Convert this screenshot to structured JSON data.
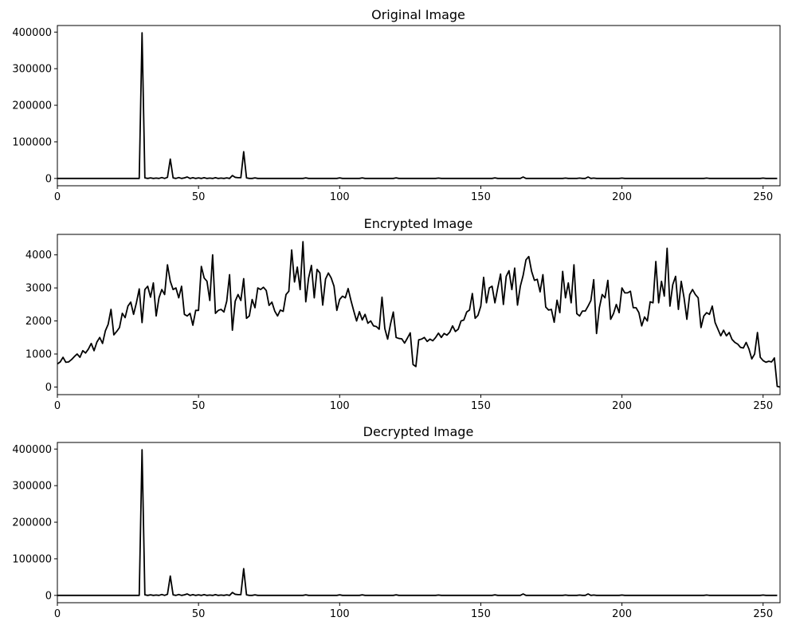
{
  "chart_data": [
    {
      "type": "line",
      "title": "Original Image",
      "xlabel": "",
      "ylabel": "",
      "xlim": [
        0,
        256
      ],
      "ylim": [
        -20000,
        418000
      ],
      "xticks": [
        0,
        50,
        100,
        150,
        200,
        250
      ],
      "yticks": [
        0,
        100000,
        200000,
        300000,
        400000
      ],
      "grid": false,
      "line_color": "#000000",
      "spikes": [
        [
          29,
          0
        ],
        [
          30,
          398000
        ],
        [
          31,
          1500
        ],
        [
          33,
          1500
        ],
        [
          35,
          1000
        ],
        [
          37,
          2500
        ],
        [
          39,
          3000
        ],
        [
          40,
          53000
        ],
        [
          41,
          1500
        ],
        [
          43,
          2500
        ],
        [
          45,
          1500
        ],
        [
          46,
          4000
        ],
        [
          48,
          2000
        ],
        [
          50,
          1500
        ],
        [
          52,
          2000
        ],
        [
          54,
          1000
        ],
        [
          56,
          2000
        ],
        [
          58,
          1000
        ],
        [
          60,
          1500
        ],
        [
          62,
          8000
        ],
        [
          63,
          3000
        ],
        [
          64,
          2000
        ],
        [
          65,
          2000
        ],
        [
          66,
          73000
        ],
        [
          67,
          1500
        ],
        [
          70,
          1500
        ],
        [
          88,
          1500
        ],
        [
          100,
          1500
        ],
        [
          108,
          1500
        ],
        [
          120,
          1500
        ],
        [
          135,
          1000
        ],
        [
          155,
          1500
        ],
        [
          165,
          4000
        ],
        [
          180,
          1000
        ],
        [
          185,
          1000
        ],
        [
          188,
          4000
        ],
        [
          190,
          1000
        ],
        [
          200,
          1000
        ],
        [
          230,
          1000
        ],
        [
          250,
          1000
        ]
      ]
    },
    {
      "type": "line",
      "title": "Encrypted Image",
      "xlabel": "",
      "ylabel": "",
      "xlim": [
        0,
        256
      ],
      "ylim": [
        -230,
        4620
      ],
      "xticks": [
        0,
        50,
        100,
        150,
        200,
        250
      ],
      "yticks": [
        0,
        1000,
        2000,
        3000,
        4000
      ],
      "grid": false,
      "line_color": "#000000",
      "y": [
        700,
        760,
        900,
        750,
        760,
        830,
        920,
        1000,
        900,
        1100,
        1030,
        1150,
        1320,
        1100,
        1360,
        1500,
        1320,
        1700,
        1900,
        2350,
        1580,
        1680,
        1800,
        2230,
        2100,
        2450,
        2570,
        2200,
        2550,
        2970,
        1950,
        2950,
        3050,
        2720,
        3150,
        2150,
        2700,
        2950,
        2800,
        3700,
        3200,
        2950,
        3000,
        2700,
        3050,
        2200,
        2150,
        2230,
        1870,
        2320,
        2320,
        3650,
        3300,
        3200,
        2620,
        4000,
        2230,
        2320,
        2350,
        2270,
        2600,
        3400,
        1720,
        2600,
        2800,
        2620,
        3280,
        2080,
        2150,
        2650,
        2400,
        3000,
        2950,
        3020,
        2920,
        2470,
        2570,
        2300,
        2150,
        2330,
        2290,
        2800,
        2900,
        4150,
        3180,
        3630,
        2950,
        4400,
        2580,
        3300,
        3680,
        2700,
        3560,
        3450,
        2480,
        3270,
        3450,
        3300,
        3050,
        2320,
        2650,
        2750,
        2700,
        2980,
        2620,
        2300,
        2000,
        2280,
        2030,
        2200,
        1930,
        2000,
        1850,
        1830,
        1750,
        2720,
        1770,
        1450,
        1900,
        2270,
        1500,
        1470,
        1460,
        1330,
        1480,
        1640,
        680,
        620,
        1430,
        1450,
        1500,
        1380,
        1450,
        1400,
        1500,
        1630,
        1500,
        1620,
        1570,
        1660,
        1850,
        1680,
        1750,
        2000,
        2030,
        2270,
        2330,
        2830,
        2080,
        2170,
        2450,
        3320,
        2550,
        3000,
        3050,
        2550,
        3000,
        3420,
        2500,
        3350,
        3520,
        2950,
        3600,
        2480,
        3050,
        3380,
        3850,
        3950,
        3500,
        3230,
        3260,
        2880,
        3400,
        2420,
        2330,
        2350,
        1960,
        2630,
        2250,
        3500,
        2700,
        3150,
        2550,
        3700,
        2220,
        2150,
        2300,
        2300,
        2450,
        2620,
        3250,
        1620,
        2400,
        2800,
        2700,
        3230,
        2050,
        2220,
        2500,
        2250,
        3000,
        2850,
        2850,
        2900,
        2400,
        2400,
        2250,
        1850,
        2120,
        2000,
        2580,
        2550,
        3800,
        2550,
        3200,
        2750,
        4200,
        2450,
        3100,
        3350,
        2350,
        3200,
        2700,
        2050,
        2800,
        2950,
        2800,
        2700,
        1800,
        2150,
        2250,
        2200,
        2450,
        1950,
        1750,
        1550,
        1720,
        1550,
        1650,
        1440,
        1350,
        1300,
        1200,
        1180,
        1350,
        1150,
        850,
        1000,
        1650,
        900,
        800,
        750,
        780,
        760,
        880,
        20,
        0
      ]
    },
    {
      "type": "line",
      "title": "Decrypted Image",
      "xlabel": "",
      "ylabel": "",
      "xlim": [
        0,
        256
      ],
      "ylim": [
        -20000,
        418000
      ],
      "xticks": [
        0,
        50,
        100,
        150,
        200,
        250
      ],
      "yticks": [
        0,
        100000,
        200000,
        300000,
        400000
      ],
      "grid": false,
      "line_color": "#000000",
      "spikes": [
        [
          29,
          0
        ],
        [
          30,
          398000
        ],
        [
          31,
          1500
        ],
        [
          33,
          1500
        ],
        [
          35,
          1000
        ],
        [
          37,
          2500
        ],
        [
          39,
          3000
        ],
        [
          40,
          53000
        ],
        [
          41,
          1500
        ],
        [
          43,
          2500
        ],
        [
          45,
          1500
        ],
        [
          46,
          4000
        ],
        [
          48,
          2000
        ],
        [
          50,
          1500
        ],
        [
          52,
          2000
        ],
        [
          54,
          1000
        ],
        [
          56,
          2000
        ],
        [
          58,
          1000
        ],
        [
          60,
          1500
        ],
        [
          62,
          8000
        ],
        [
          63,
          3000
        ],
        [
          64,
          2000
        ],
        [
          65,
          2000
        ],
        [
          66,
          73000
        ],
        [
          67,
          1500
        ],
        [
          70,
          1500
        ],
        [
          88,
          1500
        ],
        [
          100,
          1500
        ],
        [
          108,
          1500
        ],
        [
          120,
          1500
        ],
        [
          135,
          1000
        ],
        [
          155,
          1500
        ],
        [
          165,
          4000
        ],
        [
          180,
          1000
        ],
        [
          185,
          1000
        ],
        [
          188,
          4000
        ],
        [
          190,
          1000
        ],
        [
          200,
          1000
        ],
        [
          230,
          1000
        ],
        [
          250,
          1000
        ]
      ]
    }
  ]
}
